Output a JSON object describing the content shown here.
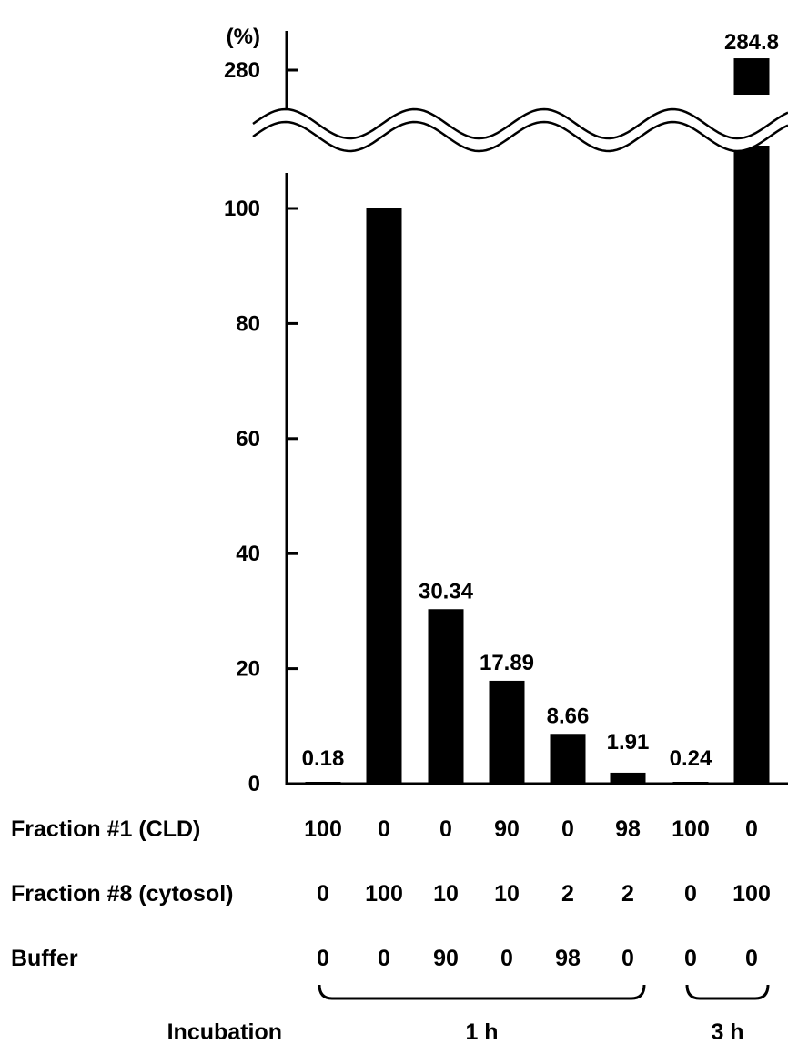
{
  "chart_data": {
    "type": "bar",
    "title": "",
    "xlabel": "",
    "ylabel": "(%)",
    "ylim": [
      0,
      100
    ],
    "upper_ylim": [
      270,
      290
    ],
    "axis_break": true,
    "yticks": [
      0,
      20,
      40,
      60,
      80,
      100
    ],
    "upper_ticks": [
      280
    ],
    "grid": false,
    "bar_color": "#000000",
    "values": [
      0.18,
      100,
      30.34,
      17.89,
      8.66,
      1.91,
      0.24,
      284.8
    ],
    "value_labels": [
      "0.18",
      "",
      "30.34",
      "17.89",
      "8.66",
      "1.91",
      "0.24",
      "284.8"
    ],
    "conditions": [
      {
        "label": "Fraction #1 (CLD)",
        "values": [
          "100",
          "0",
          "0",
          "90",
          "0",
          "98",
          "100",
          "0"
        ]
      },
      {
        "label": "Fraction #8 (cytosol)",
        "values": [
          "0",
          "100",
          "10",
          "10",
          "2",
          "2",
          "0",
          "100"
        ]
      },
      {
        "label": "Buffer",
        "values": [
          "0",
          "0",
          "90",
          "0",
          "98",
          "0",
          "0",
          "0"
        ]
      }
    ],
    "incubation": {
      "label": "Incubation",
      "groups": [
        {
          "label": "1 h",
          "from": 0,
          "to": 5
        },
        {
          "label": "3 h",
          "from": 6,
          "to": 7
        }
      ]
    }
  }
}
